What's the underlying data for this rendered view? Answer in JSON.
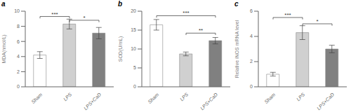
{
  "chart_data": [
    {
      "type": "bar",
      "title": "a",
      "ylabel": "MDA(nmol/L)",
      "categories": [
        "Sham",
        "LPS",
        "LPS+CaD"
      ],
      "values": [
        4.2,
        8.3,
        7.1
      ],
      "errors": [
        0.45,
        0.65,
        0.75
      ],
      "colors": [
        "#ffffff",
        "#d0d0d0",
        "#808080"
      ],
      "ylim": [
        0,
        10
      ],
      "yticks": [
        0,
        2,
        4,
        6,
        8,
        10
      ],
      "annotations": [
        {
          "x1": "Sham",
          "x2": "LPS",
          "y": 9.3,
          "text": "***"
        },
        {
          "x1": "LPS",
          "x2": "LPS+CaD",
          "y": 8.8,
          "text": "*"
        }
      ]
    },
    {
      "type": "bar",
      "title": "b",
      "ylabel": "SOD(U/mL)",
      "categories": [
        "Sham",
        "LPS",
        "LPS+CaD"
      ],
      "values": [
        16.4,
        8.7,
        12.2
      ],
      "errors": [
        1.4,
        0.5,
        0.85
      ],
      "colors": [
        "#ffffff",
        "#d0d0d0",
        "#808080"
      ],
      "ylim": [
        0,
        20
      ],
      "yticks": [
        0,
        5,
        10,
        15,
        20
      ],
      "annotations": [
        {
          "x1": "Sham",
          "x2": "LPS+CaD",
          "y": 18.8,
          "text": "***"
        },
        {
          "x1": "LPS",
          "x2": "LPS+CaD",
          "y": 14.2,
          "text": "**"
        }
      ]
    },
    {
      "type": "bar",
      "title": "c",
      "ylabel": "Relative iNOS mRNA level",
      "categories": [
        "Sham",
        "LPS",
        "LPS+CaD"
      ],
      "values": [
        1.0,
        4.3,
        3.0
      ],
      "errors": [
        0.15,
        0.55,
        0.3
      ],
      "colors": [
        "#ffffff",
        "#d0d0d0",
        "#808080"
      ],
      "ylim": [
        0,
        6
      ],
      "yticks": [
        0,
        2,
        4,
        6
      ],
      "annotations": [
        {
          "x1": "Sham",
          "x2": "LPS",
          "y": 5.5,
          "text": "***"
        },
        {
          "x1": "LPS",
          "x2": "LPS+CaD",
          "y": 5.0,
          "text": "*"
        }
      ]
    }
  ]
}
